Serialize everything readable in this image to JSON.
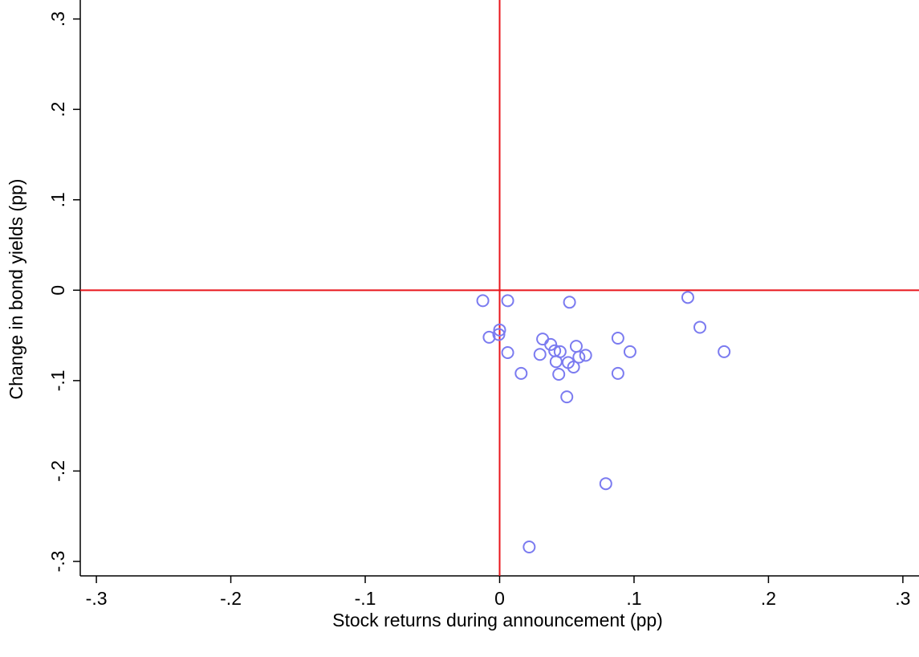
{
  "chart_data": {
    "type": "scatter",
    "xlabel": "Stock returns during announcement (pp)",
    "ylabel": "Change in bond yields (pp)",
    "x": [
      -0.0125,
      0.006,
      0.052,
      0.14,
      0.149,
      0.167,
      -0.0078,
      0,
      -0.0006,
      0.006,
      0.016,
      0.03,
      0.032,
      0.038,
      0.041,
      0.045,
      0.042,
      0.051,
      0.055,
      0.057,
      0.059,
      0.064,
      0.044,
      0.05,
      0.088,
      0.097,
      0.088,
      0.079,
      0.022
    ],
    "y": [
      -0.0116,
      -0.0116,
      -0.0133,
      -0.008,
      -0.041,
      -0.068,
      -0.052,
      -0.044,
      -0.049,
      -0.069,
      -0.092,
      -0.071,
      -0.054,
      -0.06,
      -0.067,
      -0.068,
      -0.079,
      -0.08,
      -0.085,
      -0.062,
      -0.074,
      -0.072,
      -0.093,
      -0.118,
      -0.053,
      -0.068,
      -0.092,
      -0.214,
      -0.284
    ],
    "color": "#7b7bf0",
    "xlim": [
      -0.312,
      0.312
    ],
    "ylim": [
      -0.316,
      0.321
    ],
    "xticks": [
      {
        "value": -0.3,
        "label": "-.3"
      },
      {
        "value": -0.2,
        "label": "-.2"
      },
      {
        "value": -0.1,
        "label": "-.1"
      },
      0,
      {
        "value": 0.1,
        "label": ".1"
      },
      {
        "value": 0.2,
        "label": ".2"
      },
      {
        "value": 0.3,
        "label": ".3"
      }
    ],
    "yticks": [
      {
        "value": -0.3,
        "label": "-.3"
      },
      {
        "value": -0.2,
        "label": "-.2"
      },
      {
        "value": -0.1,
        "label": "-.1"
      },
      0,
      {
        "value": 0.1,
        "label": ".1"
      },
      {
        "value": 0.2,
        "label": ".2"
      },
      {
        "value": 0.3,
        "label": ".3"
      }
    ],
    "reference_lines": {
      "x": 0,
      "y": 0,
      "color": "#e8151b"
    }
  }
}
